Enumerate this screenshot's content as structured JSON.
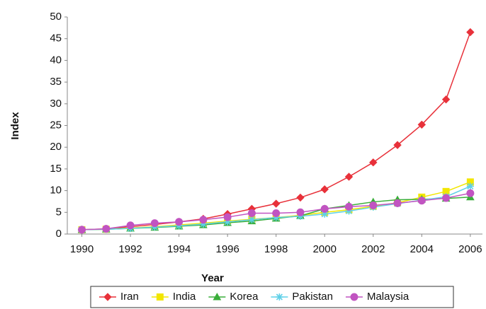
{
  "chart_data": {
    "type": "line",
    "x_label": "Year",
    "y_label": "Index",
    "x": [
      1990,
      1991,
      1992,
      1993,
      1994,
      1995,
      1996,
      1997,
      1998,
      1999,
      2000,
      2001,
      2002,
      2003,
      2004,
      2005,
      2006
    ],
    "series": [
      {
        "name": "Iran",
        "color": "#e8313a",
        "marker": "diamond",
        "values": [
          1,
          1.2,
          1.7,
          2.2,
          2.8,
          3.5,
          4.6,
          5.8,
          7,
          8.4,
          10.3,
          13.2,
          16.5,
          20.5,
          25.2,
          31,
          46.5
        ]
      },
      {
        "name": "India",
        "color": "#f2e600",
        "marker": "square",
        "values": [
          1,
          1.1,
          1.4,
          1.7,
          2.1,
          2.5,
          3,
          3.4,
          3.8,
          4.3,
          5,
          5.6,
          6.4,
          7.2,
          8.5,
          9.8,
          12
        ]
      },
      {
        "name": "Korea",
        "color": "#3aae3a",
        "marker": "triangle",
        "values": [
          1,
          1.1,
          1.3,
          1.5,
          1.8,
          2.1,
          2.6,
          3,
          3.6,
          4.2,
          5.8,
          6.6,
          7.4,
          7.9,
          8,
          8.2,
          8.5
        ]
      },
      {
        "name": "Pakistan",
        "color": "#5fd0e8",
        "marker": "star",
        "values": [
          1,
          1.1,
          1.3,
          1.6,
          1.9,
          2.3,
          2.8,
          3.3,
          3.8,
          4.1,
          4.6,
          5.3,
          6.2,
          7,
          7.8,
          8.6,
          11
        ]
      },
      {
        "name": "Malaysia",
        "color": "#c154c1",
        "marker": "circle",
        "values": [
          1,
          1.2,
          2,
          2.5,
          2.8,
          3.3,
          3.9,
          4.8,
          4.8,
          5,
          5.8,
          6.3,
          6.6,
          7.1,
          7.7,
          8.3,
          9.4
        ]
      }
    ],
    "xlim": [
      1989.4,
      2006.5
    ],
    "xticks": [
      1990,
      1992,
      1994,
      1996,
      1998,
      2000,
      2002,
      2004,
      2006
    ],
    "ylim": [
      0,
      50
    ],
    "yticks": [
      0,
      5,
      10,
      15,
      20,
      25,
      30,
      35,
      40,
      45,
      50
    ],
    "grid": false,
    "legend": "bottom"
  }
}
